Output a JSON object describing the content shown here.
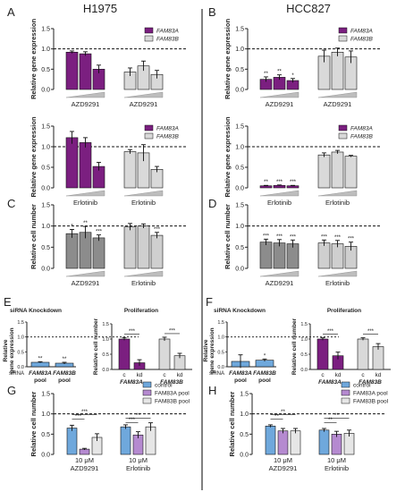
{
  "columns": [
    "H1975",
    "HCC827"
  ],
  "colors": {
    "fam83a": "#7b1f80",
    "fam83b": "#d9d9d9",
    "control": "#6fa8dc",
    "fam83a_pool": "#b58ad0",
    "fam83b_pool": "#e6e6e6",
    "axis": "#222222",
    "divider": "#000000"
  },
  "chart_data": [
    {
      "panel": "A",
      "id": "A1",
      "type": "bar",
      "ylabel": "Relative gene expression",
      "yticks": [
        "0.0",
        "0.5",
        "1.0",
        "1.5"
      ],
      "ylim": [
        0,
        1.5
      ],
      "reference_line": 1.0,
      "series": [
        {
          "name": "FAM83A",
          "values": [
            0.92,
            0.88,
            0.5
          ],
          "errors": [
            0.03,
            0.05,
            0.1
          ]
        },
        {
          "name": "FAM83B",
          "values": [
            0.43,
            0.58,
            0.37
          ],
          "errors": [
            0.1,
            0.12,
            0.1
          ]
        }
      ],
      "group_labels": [
        "AZD9291",
        "AZD9291"
      ],
      "legend": [
        "FAM83A",
        "FAM83B"
      ],
      "legend_position": "top-right",
      "stars": [
        [
          "",
          "",
          ""
        ],
        [
          "",
          "",
          ""
        ]
      ]
    },
    {
      "panel": "",
      "id": "A2",
      "type": "bar",
      "ylabel": "Relative gene expression",
      "yticks": [
        "0.0",
        "0.5",
        "1.0",
        "1.5"
      ],
      "ylim": [
        0,
        1.5
      ],
      "reference_line": 1.0,
      "series": [
        {
          "name": "FAM83A",
          "values": [
            1.22,
            1.1,
            0.52
          ],
          "errors": [
            0.15,
            0.12,
            0.1
          ]
        },
        {
          "name": "FAM83B",
          "values": [
            0.88,
            0.85,
            0.45
          ],
          "errors": [
            0.05,
            0.2,
            0.07
          ]
        }
      ],
      "group_labels": [
        "Erlotinib",
        "Erlotinib"
      ],
      "legend": [
        "FAM83A",
        "FAM83B"
      ],
      "legend_position": "top-right",
      "stars": [
        [
          "",
          "",
          ""
        ],
        [
          "",
          "",
          ""
        ]
      ]
    },
    {
      "panel": "B",
      "id": "B1",
      "type": "bar",
      "ylabel": "Relative gene expression",
      "yticks": [
        "0.0",
        "0.5",
        "1.0",
        "1.5"
      ],
      "ylim": [
        0,
        1.5
      ],
      "reference_line": 1.0,
      "series": [
        {
          "name": "FAM83A",
          "values": [
            0.25,
            0.3,
            0.22
          ],
          "errors": [
            0.06,
            0.06,
            0.05
          ]
        },
        {
          "name": "FAM83B",
          "values": [
            0.82,
            0.92,
            0.8
          ],
          "errors": [
            0.15,
            0.1,
            0.15
          ]
        }
      ],
      "group_labels": [
        "AZD9291",
        "AZD9291"
      ],
      "legend": [
        "FAM83A",
        "FAM83B"
      ],
      "legend_position": "top-right",
      "stars": [
        [
          "**",
          "**",
          "*"
        ],
        [
          "",
          "",
          ""
        ]
      ]
    },
    {
      "panel": "",
      "id": "B2",
      "type": "bar",
      "ylabel": "Relative gene expression",
      "yticks": [
        "0.0",
        "0.5",
        "1.0",
        "1.5"
      ],
      "ylim": [
        0,
        1.5
      ],
      "reference_line": 1.0,
      "series": [
        {
          "name": "FAM83A",
          "values": [
            0.05,
            0.06,
            0.05
          ],
          "errors": [
            0.01,
            0.01,
            0.01
          ]
        },
        {
          "name": "FAM83B",
          "values": [
            0.8,
            0.87,
            0.77
          ],
          "errors": [
            0.05,
            0.04,
            0.02
          ]
        }
      ],
      "group_labels": [
        "Erlotinib",
        "Erlotinib"
      ],
      "legend": [
        "FAM83A",
        "FAM83B"
      ],
      "legend_position": "top-right",
      "stars": [
        [
          "**",
          "***",
          "***"
        ],
        [
          "",
          "",
          ""
        ]
      ]
    },
    {
      "panel": "C",
      "id": "C",
      "type": "bar",
      "ylabel": "Relative cell number",
      "yticks": [
        "0.0",
        "0.5",
        "1.0",
        "1.5"
      ],
      "ylim": [
        0,
        1.5
      ],
      "reference_line": 1.0,
      "series": [
        {
          "name": "",
          "values": [
            0.82,
            0.85,
            0.72
          ],
          "errors": [
            0.1,
            0.14,
            0.07
          ]
        },
        {
          "name": "",
          "values": [
            0.98,
            1.0,
            0.78
          ],
          "errors": [
            0.08,
            0.05,
            0.07
          ]
        }
      ],
      "group_labels": [
        "AZD9291",
        "Erlotinib"
      ],
      "legend": [],
      "legend_position": "",
      "stars": [
        [
          "*",
          "**",
          "***"
        ],
        [
          "",
          "",
          "***"
        ]
      ]
    },
    {
      "panel": "D",
      "id": "D",
      "type": "bar",
      "ylabel": "Relative cell number",
      "yticks": [
        "0.0",
        "0.5",
        "1.0",
        "1.5"
      ],
      "ylim": [
        0,
        1.5
      ],
      "reference_line": 1.0,
      "series": [
        {
          "name": "",
          "values": [
            0.62,
            0.6,
            0.58
          ],
          "errors": [
            0.07,
            0.08,
            0.09
          ]
        },
        {
          "name": "",
          "values": [
            0.6,
            0.58,
            0.52
          ],
          "errors": [
            0.07,
            0.08,
            0.1
          ]
        }
      ],
      "group_labels": [
        "AZD9291",
        "Erlotinib"
      ],
      "legend": [],
      "legend_position": "",
      "stars": [
        [
          "***",
          "***",
          "***"
        ],
        [
          "***",
          "***",
          "***"
        ]
      ]
    },
    {
      "panel": "E",
      "id": "E1",
      "type": "bar",
      "title": "siRNA Knockdown",
      "ylabel": "Relative gene expression",
      "yticks": [
        "0.0",
        "0.5",
        "1.0",
        "1.5"
      ],
      "ylim": [
        0,
        1.5
      ],
      "reference_line": 1.0,
      "categories": [
        "FAM83A pool",
        "FAM83B pool"
      ],
      "category_prefix": "siRNA",
      "values": [
        0.15,
        0.12
      ],
      "errors": [
        0.02,
        0.03
      ],
      "stars": [
        "**",
        "**"
      ]
    },
    {
      "panel": "",
      "id": "E2",
      "type": "bar",
      "title": "Proliferation",
      "ylabel": "Relative cell number",
      "yticks": [
        "0.0",
        "0.5",
        "1.0",
        "1.5"
      ],
      "ylim": [
        0,
        1.5
      ],
      "groups": [
        {
          "label": "FAM83A",
          "categories": [
            "c",
            "kd"
          ],
          "values": [
            1.0,
            0.22
          ],
          "errors": [
            0.04,
            0.1
          ]
        },
        {
          "label": "FAM83B",
          "categories": [
            "c",
            "kd"
          ],
          "values": [
            1.0,
            0.45
          ],
          "errors": [
            0.06,
            0.08
          ]
        }
      ],
      "stars": [
        "***",
        "***"
      ]
    },
    {
      "panel": "F",
      "id": "F1",
      "type": "bar",
      "title": "siRNA Knockdown",
      "ylabel": "Relative gene expression",
      "yticks": [
        "0.0",
        "0.5",
        "1.0",
        "1.5"
      ],
      "ylim": [
        0,
        1.5
      ],
      "reference_line": 1.0,
      "categories": [
        "FAM83A pool",
        "FAM83B pool"
      ],
      "category_prefix": "siRNA",
      "values": [
        0.18,
        0.22
      ],
      "errors": [
        0.22,
        0.04
      ],
      "stars": [
        "",
        "*"
      ]
    },
    {
      "panel": "",
      "id": "F2",
      "type": "bar",
      "title": "Proliferation",
      "ylabel": "Relative cell number",
      "yticks": [
        "0.0",
        "0.5",
        "1.0",
        "1.5"
      ],
      "ylim": [
        0,
        1.5
      ],
      "groups": [
        {
          "label": "FAM83A",
          "categories": [
            "c",
            "kd"
          ],
          "values": [
            1.0,
            0.45
          ],
          "errors": [
            0.04,
            0.12
          ]
        },
        {
          "label": "FAM83B",
          "categories": [
            "c",
            "kd"
          ],
          "values": [
            1.0,
            0.75
          ],
          "errors": [
            0.04,
            0.1
          ]
        }
      ],
      "stars": [
        "***",
        "***"
      ]
    },
    {
      "panel": "G",
      "id": "G",
      "type": "bar",
      "ylabel": "Relative cell number",
      "yticks": [
        "0.0",
        "0.5",
        "1.0",
        "1.5"
      ],
      "ylim": [
        0,
        1.5
      ],
      "reference_line": 1.0,
      "categories": [
        "10 μM AZD9291",
        "10 μM Erlotinib"
      ],
      "series": [
        {
          "name": "control",
          "values": [
            0.65,
            0.68
          ],
          "errors": [
            0.07,
            0.05
          ]
        },
        {
          "name": "FAM83A pool",
          "values": [
            0.13,
            0.48
          ],
          "errors": [
            0.02,
            0.08
          ]
        },
        {
          "name": "FAM83B pool",
          "values": [
            0.42,
            0.68
          ],
          "errors": [
            0.09,
            0.1
          ]
        }
      ],
      "legend_position": "top-right",
      "stars": [
        "***",
        "***",
        "***",
        "**"
      ]
    },
    {
      "panel": "H",
      "id": "H",
      "type": "bar",
      "ylabel": "Relative cell number",
      "yticks": [
        "0.0",
        "0.5",
        "1.0",
        "1.5"
      ],
      "ylim": [
        0,
        1.5
      ],
      "reference_line": 1.0,
      "categories": [
        "10 μM AZD9291",
        "10 μM Erlotinib"
      ],
      "series": [
        {
          "name": "control",
          "values": [
            0.7,
            0.6
          ],
          "errors": [
            0.03,
            0.04
          ]
        },
        {
          "name": "FAM83A pool",
          "values": [
            0.58,
            0.5
          ],
          "errors": [
            0.06,
            0.07
          ]
        },
        {
          "name": "FAM83B pool",
          "values": [
            0.58,
            0.52
          ],
          "errors": [
            0.06,
            0.08
          ]
        }
      ],
      "legend_position": "top-right",
      "stars": [
        "**",
        "**",
        "**",
        "**"
      ]
    }
  ]
}
